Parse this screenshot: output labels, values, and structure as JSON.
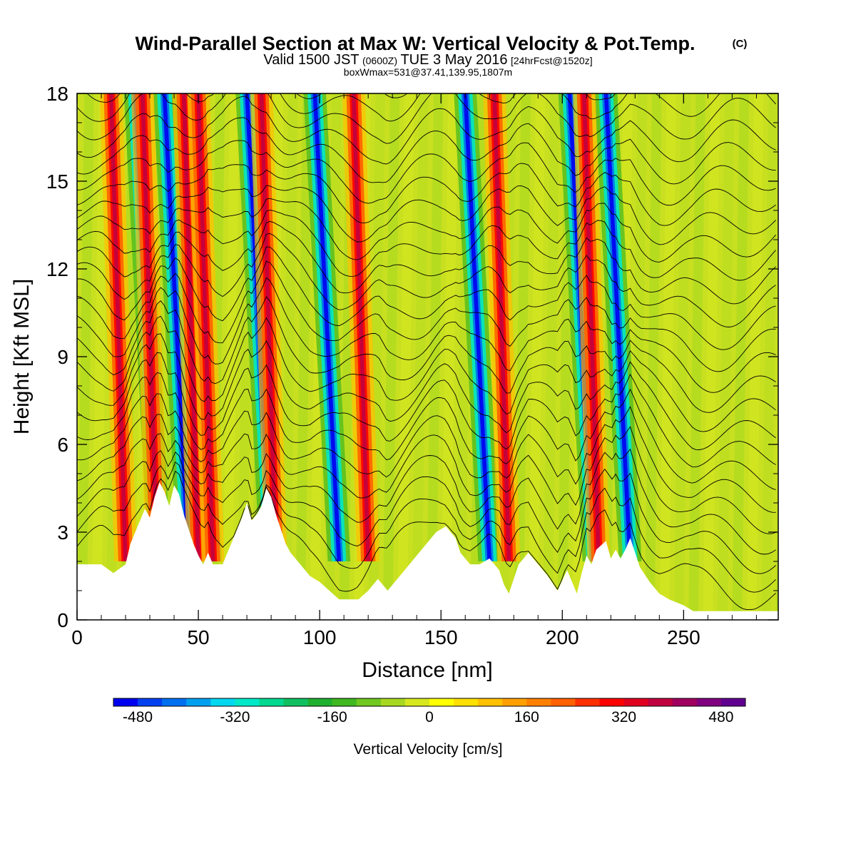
{
  "title": {
    "main": "Wind-Parallel Section at Max W: Vertical Velocity & Pot.Temp.",
    "main_suffix": "(C)",
    "line2_a": "Valid 1500 JST",
    "line2_b": "(0600Z)",
    "line2_c": "TUE 3 May 2016",
    "line2_d": "[24hrFcst@1520z]",
    "line3": "boxWmax=531@37.41,139.95,1807m"
  },
  "chart_data": {
    "type": "heatmap",
    "xlabel": "Distance [nm]",
    "ylabel": "Height [Kft MSL]",
    "xlim": [
      0,
      289
    ],
    "ylim": [
      0,
      18
    ],
    "x_ticks": [
      "0",
      "50",
      "100",
      "150",
      "200",
      "250"
    ],
    "x_tick_values": [
      0,
      50,
      100,
      150,
      200,
      250
    ],
    "y_ticks": [
      "0",
      "3",
      "6",
      "9",
      "12",
      "15",
      "18"
    ],
    "y_tick_values": [
      0,
      3,
      6,
      9,
      12,
      15,
      18
    ],
    "colorbar": {
      "title": "Vertical Velocity [cm/s]",
      "labels": [
        "-480",
        "-320",
        "-160",
        "0",
        "160",
        "320",
        "480"
      ],
      "label_values": [
        -480,
        -320,
        -160,
        0,
        160,
        320,
        480
      ],
      "min": -520,
      "max": 520,
      "step": 40,
      "colors": [
        "#0000f0",
        "#0040f0",
        "#0070f0",
        "#00a0f0",
        "#00d8f0",
        "#00e8c8",
        "#00d890",
        "#10c060",
        "#20b030",
        "#40b820",
        "#70c820",
        "#a8d820",
        "#d8e820",
        "#ffff00",
        "#ffe000",
        "#ffc000",
        "#ffa000",
        "#ff8000",
        "#ff6000",
        "#ff3000",
        "#ff0000",
        "#e00020",
        "#c00040",
        "#a00060",
        "#800080",
        "#600090"
      ]
    },
    "terrain_kft": [
      [
        0,
        1.9
      ],
      [
        10,
        1.9
      ],
      [
        15,
        1.6
      ],
      [
        20,
        1.9
      ],
      [
        22,
        2.6
      ],
      [
        25,
        3.2
      ],
      [
        28,
        3.8
      ],
      [
        30,
        3.5
      ],
      [
        32,
        4.2
      ],
      [
        34,
        4.7
      ],
      [
        36,
        4.4
      ],
      [
        38,
        3.9
      ],
      [
        40,
        4.6
      ],
      [
        42,
        4.3
      ],
      [
        44,
        3.6
      ],
      [
        46,
        3.1
      ],
      [
        48,
        2.6
      ],
      [
        50,
        2.2
      ],
      [
        52,
        1.9
      ],
      [
        54,
        2.3
      ],
      [
        56,
        1.9
      ],
      [
        60,
        1.9
      ],
      [
        64,
        2.7
      ],
      [
        68,
        3.5
      ],
      [
        70,
        4.0
      ],
      [
        72,
        3.4
      ],
      [
        74,
        3.6
      ],
      [
        76,
        3.9
      ],
      [
        78,
        4.5
      ],
      [
        80,
        4.2
      ],
      [
        82,
        3.6
      ],
      [
        84,
        3.1
      ],
      [
        86,
        2.6
      ],
      [
        88,
        2.3
      ],
      [
        92,
        1.9
      ],
      [
        96,
        1.5
      ],
      [
        100,
        1.3
      ],
      [
        104,
        1.0
      ],
      [
        108,
        0.7
      ],
      [
        116,
        0.7
      ],
      [
        120,
        1.0
      ],
      [
        124,
        1.4
      ],
      [
        128,
        1.0
      ],
      [
        132,
        1.4
      ],
      [
        136,
        1.8
      ],
      [
        140,
        2.2
      ],
      [
        144,
        2.6
      ],
      [
        148,
        3.0
      ],
      [
        152,
        3.2
      ],
      [
        156,
        2.8
      ],
      [
        158,
        2.3
      ],
      [
        162,
        1.9
      ],
      [
        166,
        1.9
      ],
      [
        170,
        2.1
      ],
      [
        174,
        1.7
      ],
      [
        176,
        1.2
      ],
      [
        178,
        0.9
      ],
      [
        180,
        1.4
      ],
      [
        182,
        1.9
      ],
      [
        186,
        2.3
      ],
      [
        190,
        1.9
      ],
      [
        194,
        1.5
      ],
      [
        198,
        1.0
      ],
      [
        202,
        1.7
      ],
      [
        204,
        1.3
      ],
      [
        206,
        0.9
      ],
      [
        208,
        1.6
      ],
      [
        210,
        2.2
      ],
      [
        212,
        1.9
      ],
      [
        214,
        2.4
      ],
      [
        218,
        2.7
      ],
      [
        220,
        2.1
      ],
      [
        222,
        2.4
      ],
      [
        224,
        2.1
      ],
      [
        226,
        2.4
      ],
      [
        228,
        2.8
      ],
      [
        230,
        2.3
      ],
      [
        232,
        1.8
      ],
      [
        236,
        1.3
      ],
      [
        240,
        0.9
      ],
      [
        244,
        0.7
      ],
      [
        250,
        0.5
      ],
      [
        254,
        0.3
      ],
      [
        289,
        0.3
      ]
    ],
    "updraft_bands_x": [
      20,
      33,
      50,
      56,
      82,
      120,
      178,
      215
    ],
    "downdraft_bands_x": [
      34,
      46,
      55,
      80,
      108,
      170,
      213,
      228
    ]
  }
}
